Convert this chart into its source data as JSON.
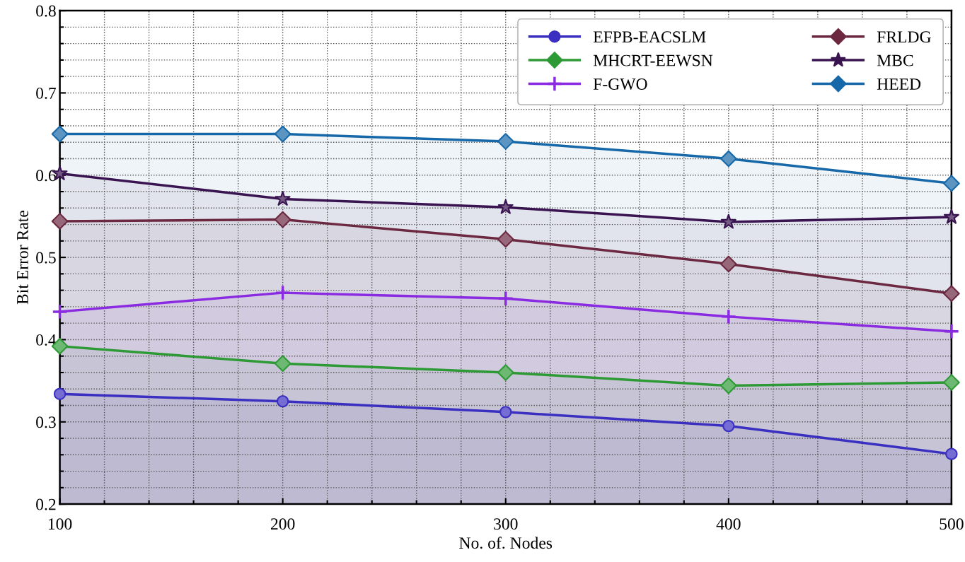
{
  "chart_data": {
    "type": "area",
    "xlabel": "No. of. Nodes",
    "ylabel": "Bit Error Rate",
    "x": [
      100,
      200,
      300,
      400,
      500
    ],
    "series": [
      {
        "name": "EFPB-EACSLM",
        "color": "#3a2fc0",
        "marker": "circle",
        "values": [
          0.334,
          0.325,
          0.312,
          0.295,
          0.261
        ]
      },
      {
        "name": "MHCRT-EEWSN",
        "color": "#2e9a35",
        "marker": "diamond",
        "values": [
          0.392,
          0.371,
          0.36,
          0.344,
          0.348
        ]
      },
      {
        "name": "F-GWO",
        "color": "#8a2be2",
        "marker": "cross",
        "values": [
          0.434,
          0.457,
          0.45,
          0.428,
          0.41
        ]
      },
      {
        "name": "FRLDG",
        "color": "#6b2840",
        "marker": "diamond",
        "values": [
          0.544,
          0.546,
          0.522,
          0.492,
          0.456
        ]
      },
      {
        "name": "MBC",
        "color": "#3a1450",
        "marker": "star",
        "values": [
          0.602,
          0.571,
          0.561,
          0.543,
          0.549
        ]
      },
      {
        "name": "HEED",
        "color": "#1668a8",
        "marker": "diamond",
        "values": [
          0.65,
          0.65,
          0.641,
          0.62,
          0.59
        ]
      }
    ],
    "xlim": [
      100,
      500
    ],
    "xticks": [
      100,
      200,
      300,
      400,
      500
    ],
    "ylim": [
      0.2,
      0.8
    ],
    "yticks": [
      0.2,
      0.3,
      0.4,
      0.5,
      0.6,
      0.7,
      0.8
    ],
    "grid": true,
    "legend": "top right",
    "line_style": "solid"
  }
}
